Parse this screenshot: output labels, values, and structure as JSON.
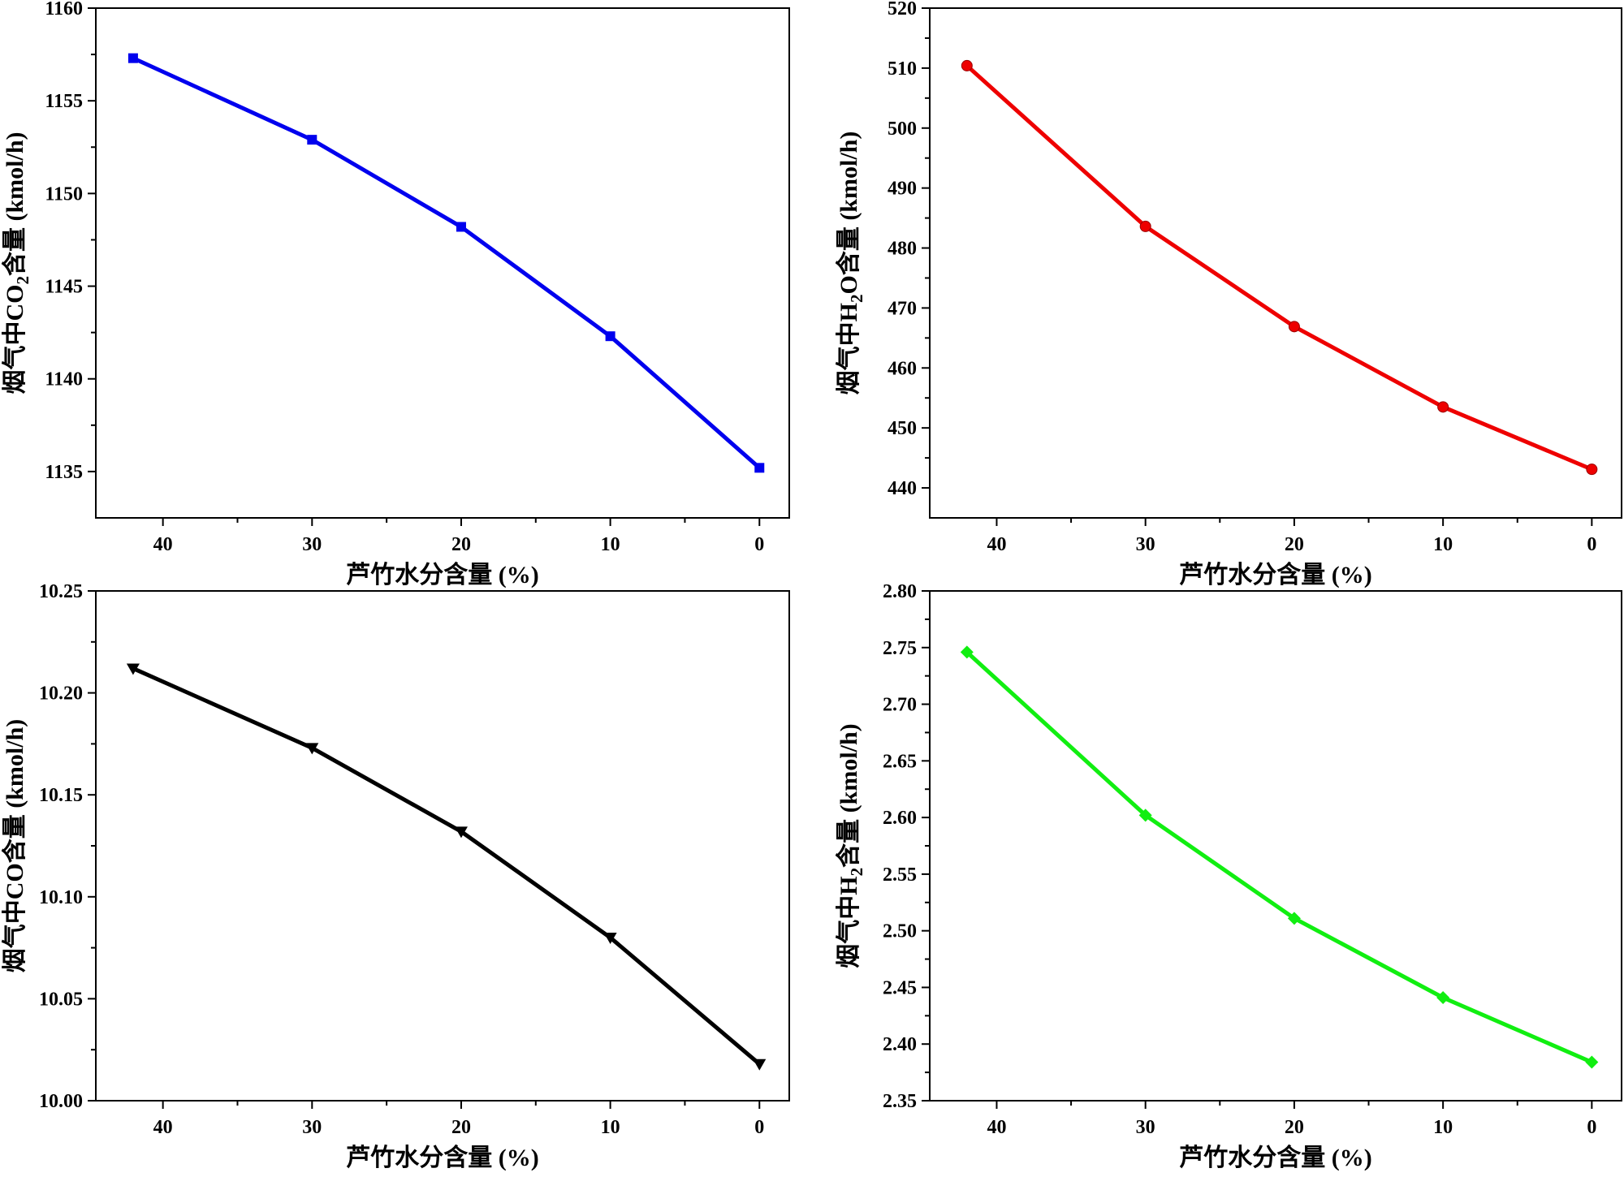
{
  "chart_data": [
    {
      "type": "line",
      "xlabel": "芦竹水分含量 (%)",
      "ylabel": {
        "pre": "烟气中CO",
        "sub": "2",
        "post": "含量 (kmol/h)"
      },
      "x": [
        42,
        30,
        20,
        10,
        0
      ],
      "values": [
        1157.3,
        1152.9,
        1148.2,
        1142.3,
        1135.2
      ],
      "xlim": [
        44.5,
        -2
      ],
      "ylim": [
        1132.5,
        1160
      ],
      "xticks": [
        40,
        30,
        20,
        10,
        0
      ],
      "xtick_labels": [
        "40",
        "30",
        "20",
        "10",
        "0"
      ],
      "yticks": [
        1135,
        1140,
        1145,
        1150,
        1155,
        1160
      ],
      "ytick_labels": [
        "1135",
        "1140",
        "1145",
        "1150",
        "1155",
        "1160"
      ],
      "color": "#0000ee",
      "marker": "square"
    },
    {
      "type": "line",
      "xlabel": "芦竹水分含量 (%)",
      "ylabel": {
        "pre": "烟气中H",
        "sub": "2",
        "post": "O含量 (kmol/h)"
      },
      "x": [
        42,
        30,
        20,
        10,
        0
      ],
      "values": [
        510.4,
        483.6,
        466.9,
        453.5,
        443.1
      ],
      "xlim": [
        44.5,
        -2
      ],
      "ylim": [
        435,
        520
      ],
      "xticks": [
        40,
        30,
        20,
        10,
        0
      ],
      "xtick_labels": [
        "40",
        "30",
        "20",
        "10",
        "0"
      ],
      "yticks": [
        440,
        450,
        460,
        470,
        480,
        490,
        500,
        510,
        520
      ],
      "ytick_labels": [
        "440",
        "450",
        "460",
        "470",
        "480",
        "490",
        "500",
        "510",
        "520"
      ],
      "color": "#ee0000",
      "marker": "circle"
    },
    {
      "type": "line",
      "xlabel": "芦竹水分含量 (%)",
      "ylabel": {
        "pre": "烟气中CO含量 (kmol/h)",
        "sub": "",
        "post": ""
      },
      "x": [
        42,
        30,
        20,
        10,
        0
      ],
      "values": [
        10.212,
        10.173,
        10.132,
        10.08,
        10.018
      ],
      "xlim": [
        44.5,
        -2
      ],
      "ylim": [
        10.0,
        10.25
      ],
      "xticks": [
        40,
        30,
        20,
        10,
        0
      ],
      "xtick_labels": [
        "40",
        "30",
        "20",
        "10",
        "0"
      ],
      "yticks": [
        10.0,
        10.05,
        10.1,
        10.15,
        10.2,
        10.25
      ],
      "ytick_labels": [
        "10.00",
        "10.05",
        "10.10",
        "10.15",
        "10.20",
        "10.25"
      ],
      "color": "#000000",
      "marker": "triangle-down"
    },
    {
      "type": "line",
      "xlabel": "芦竹水分含量 (%)",
      "ylabel": {
        "pre": "烟气中H",
        "sub": "2",
        "post": "含量 (kmol/h)"
      },
      "x": [
        42,
        30,
        20,
        10,
        0
      ],
      "values": [
        2.746,
        2.602,
        2.511,
        2.441,
        2.384
      ],
      "xlim": [
        44.5,
        -2
      ],
      "ylim": [
        2.35,
        2.8
      ],
      "xticks": [
        40,
        30,
        20,
        10,
        0
      ],
      "xtick_labels": [
        "40",
        "30",
        "20",
        "10",
        "0"
      ],
      "yticks": [
        2.35,
        2.4,
        2.45,
        2.5,
        2.55,
        2.6,
        2.65,
        2.7,
        2.75,
        2.8
      ],
      "ytick_labels": [
        "2.35",
        "2.40",
        "2.45",
        "2.50",
        "2.55",
        "2.60",
        "2.65",
        "2.70",
        "2.75",
        "2.80"
      ],
      "color": "#11ee11",
      "marker": "diamond"
    }
  ]
}
